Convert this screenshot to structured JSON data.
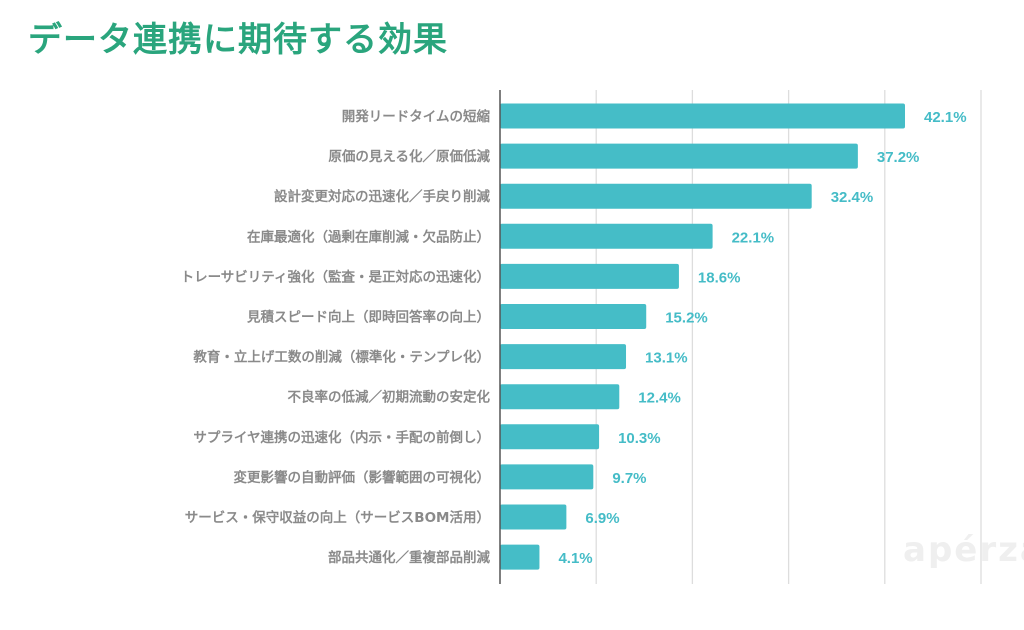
{
  "chart_data": {
    "type": "bar",
    "orientation": "horizontal",
    "title": "データ連携に期待する効果",
    "categories": [
      "開発リードタイムの短縮",
      "原価の見える化／原価低減",
      "設計変更対応の迅速化／手戻り削減",
      "在庫最適化（過剰在庫削減・欠品防止）",
      "トレーサビリティ強化（監査・是正対応の迅速化）",
      "見積スピード向上（即時回答率の向上）",
      "教育・立上げ工数の削減（標準化・テンプレ化）",
      "不良率の低減／初期流動の安定化",
      "サプライヤ連携の迅速化（内示・手配の前倒し）",
      "変更影響の自動評価（影響範囲の可視化）",
      "サービス・保守収益の向上（サービスBOM活用）",
      "部品共通化／重複部品削減"
    ],
    "values": [
      42.1,
      37.2,
      32.4,
      22.1,
      18.6,
      15.2,
      13.1,
      12.4,
      10.3,
      9.7,
      6.9,
      4.1
    ],
    "value_labels": [
      "42.1%",
      "37.2%",
      "32.4%",
      "22.1%",
      "18.6%",
      "15.2%",
      "13.1%",
      "12.4%",
      "10.3%",
      "9.7%",
      "6.9%",
      "4.1%"
    ],
    "xlim": [
      0,
      50
    ],
    "grid": true,
    "xlabel": "",
    "ylabel": "",
    "colors": {
      "bar": "#45bdc7",
      "value_label": "#45bcc7",
      "title": "#2aa57d",
      "category_label": "#8a8a8a"
    }
  },
  "watermark": "apérza"
}
